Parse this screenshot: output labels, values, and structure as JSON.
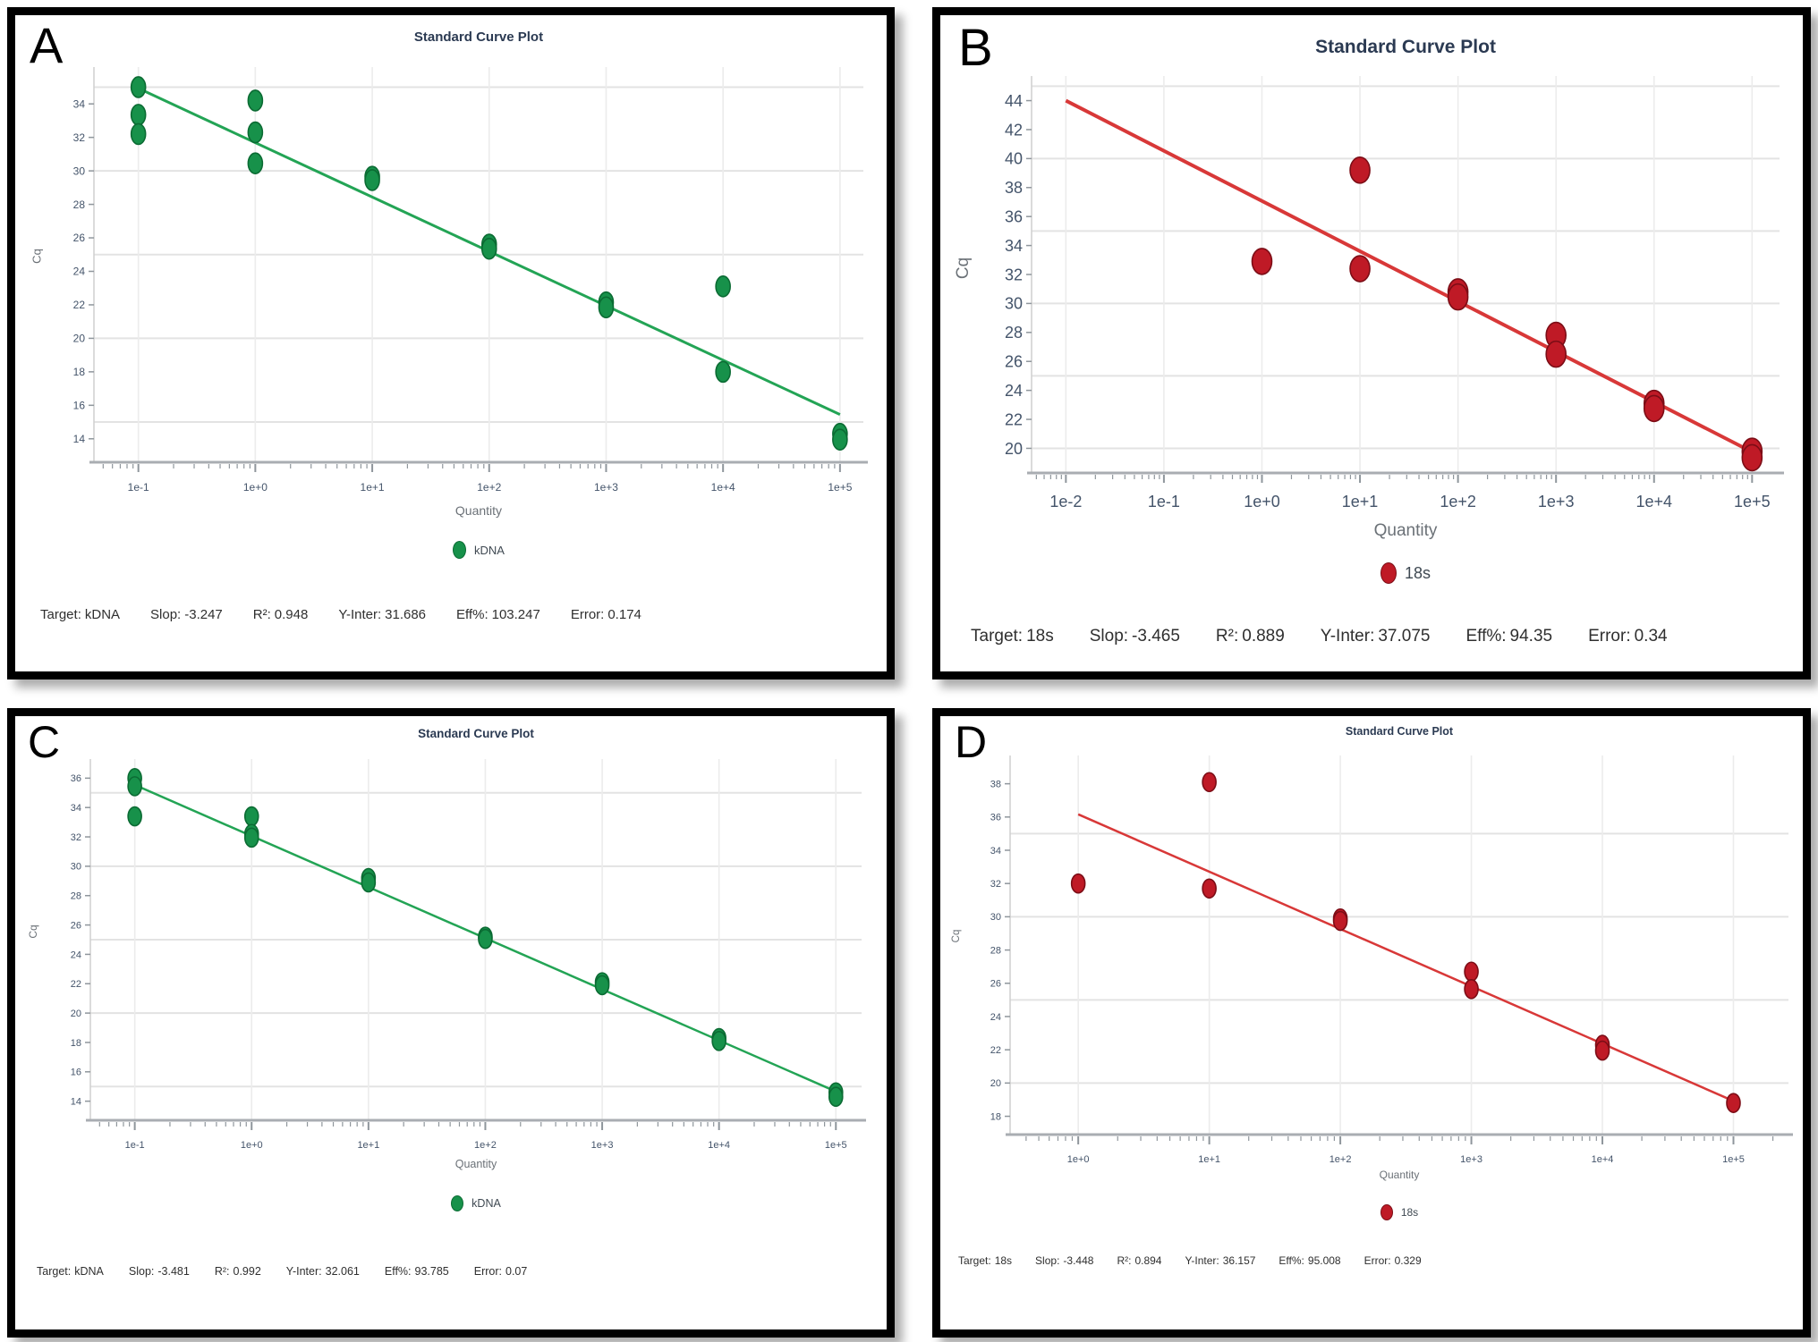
{
  "stats_labels": {
    "target": "Target:",
    "slop": "Slop:",
    "r2": "R²:",
    "y_inter": "Y-Inter:",
    "eff": "Eff%:",
    "error": "Error:"
  },
  "chart_data": [
    {
      "panel": "A",
      "type": "scatter",
      "title": "Standard Curve Plot",
      "xlabel": "Quantity",
      "ylabel": "Cq",
      "x_scale": "log",
      "x_log_range": [
        -1.38,
        5.2
      ],
      "x_tick_decades": [
        -1,
        0,
        1,
        2,
        3,
        4,
        5
      ],
      "x_ticks": [
        "1e-1",
        "1e+0",
        "1e+1",
        "1e+2",
        "1e+3",
        "1e+4",
        "1e+5"
      ],
      "ylim": [
        12.6,
        36.2
      ],
      "y_ticks": [
        14,
        16,
        18,
        20,
        22,
        24,
        26,
        28,
        30,
        32,
        34
      ],
      "y_gridlines": [
        15,
        20,
        25,
        30,
        35
      ],
      "series_color": "#17914a",
      "point_stroke": "#0b6b33",
      "line_color": "#23a455",
      "legend": [
        {
          "name": "kDNA",
          "color": "#17914a"
        }
      ],
      "points": [
        [
          0.1,
          35.0
        ],
        [
          0.1,
          33.35
        ],
        [
          0.1,
          32.2
        ],
        [
          1,
          34.2
        ],
        [
          1,
          32.3
        ],
        [
          1,
          30.45
        ],
        [
          10,
          29.65
        ],
        [
          10,
          29.45
        ],
        [
          100,
          25.6
        ],
        [
          100,
          25.35
        ],
        [
          1000,
          22.15
        ],
        [
          1000,
          21.85
        ],
        [
          10000,
          23.1
        ],
        [
          10000,
          18.0
        ],
        [
          100000,
          14.3
        ],
        [
          100000,
          13.95
        ]
      ],
      "trendline": {
        "from": [
          0.1,
          34.93
        ],
        "to": [
          100000,
          15.45
        ]
      },
      "stats": {
        "target": "kDNA",
        "slop": "-3.247",
        "r2": "0.948",
        "y_inter": "31.686",
        "eff": "103.247",
        "error": "0.174"
      }
    },
    {
      "panel": "B",
      "type": "scatter",
      "title": "Standard Curve Plot",
      "xlabel": "Quantity",
      "ylabel": "Cq",
      "x_scale": "log",
      "x_log_range": [
        -2.35,
        5.28
      ],
      "x_tick_decades": [
        -2,
        -1,
        0,
        1,
        2,
        3,
        4,
        5
      ],
      "x_ticks": [
        "1e-2",
        "1e-1",
        "1e+0",
        "1e+1",
        "1e+2",
        "1e+3",
        "1e+4",
        "1e+5"
      ],
      "ylim": [
        18.3,
        45.7
      ],
      "y_ticks": [
        20,
        22,
        24,
        26,
        28,
        30,
        32,
        34,
        36,
        38,
        40,
        42,
        44
      ],
      "y_gridlines": [
        20,
        25,
        30,
        35,
        40,
        45
      ],
      "series_color": "#bf1a26",
      "point_stroke": "#7c0d16",
      "line_color": "#d83838",
      "legend": [
        {
          "name": "18s",
          "color": "#bf1a26"
        }
      ],
      "points": [
        [
          1,
          32.9
        ],
        [
          10,
          39.2
        ],
        [
          10,
          32.4
        ],
        [
          100,
          30.8
        ],
        [
          100,
          30.45
        ],
        [
          1000,
          27.8
        ],
        [
          1000,
          26.5
        ],
        [
          10000,
          23.1
        ],
        [
          10000,
          22.75
        ],
        [
          100000,
          19.8
        ],
        [
          100000,
          19.35
        ]
      ],
      "trendline": {
        "from": [
          0.01,
          44.0
        ],
        "to": [
          100000,
          19.75
        ]
      },
      "stats": {
        "target": "18s",
        "slop": "-3.465",
        "r2": "0.889",
        "y_inter": "37.075",
        "eff": "94.35",
        "error": "0.34"
      }
    },
    {
      "panel": "C",
      "type": "scatter",
      "title": "Standard Curve Plot",
      "xlabel": "Quantity",
      "ylabel": "Cq",
      "x_scale": "log",
      "x_log_range": [
        -1.38,
        5.22
      ],
      "x_tick_decades": [
        -1,
        0,
        1,
        2,
        3,
        4,
        5
      ],
      "x_ticks": [
        "1e-1",
        "1e+0",
        "1e+1",
        "1e+2",
        "1e+3",
        "1e+4",
        "1e+5"
      ],
      "ylim": [
        12.7,
        37.3
      ],
      "y_ticks": [
        14,
        16,
        18,
        20,
        22,
        24,
        26,
        28,
        30,
        32,
        34,
        36
      ],
      "y_gridlines": [
        15,
        20,
        25,
        30,
        35
      ],
      "series_color": "#17914a",
      "point_stroke": "#0b6b33",
      "line_color": "#23a455",
      "legend": [
        {
          "name": "kDNA",
          "color": "#17914a"
        }
      ],
      "points": [
        [
          0.1,
          36.0
        ],
        [
          0.1,
          35.45
        ],
        [
          0.1,
          33.4
        ],
        [
          1,
          33.4
        ],
        [
          1,
          32.2
        ],
        [
          1,
          31.95
        ],
        [
          10,
          29.2
        ],
        [
          10,
          28.9
        ],
        [
          100,
          25.2
        ],
        [
          100,
          25.05
        ],
        [
          1000,
          22.1
        ],
        [
          1000,
          21.9
        ],
        [
          10000,
          18.3
        ],
        [
          10000,
          18.1
        ],
        [
          100000,
          14.6
        ],
        [
          100000,
          14.3
        ]
      ],
      "trendline": {
        "from": [
          0.1,
          35.54
        ],
        "to": [
          100000,
          14.66
        ]
      },
      "stats": {
        "target": "kDNA",
        "slop": "-3.481",
        "r2": "0.992",
        "y_inter": "32.061",
        "eff": "93.785",
        "error": "0.07"
      }
    },
    {
      "panel": "D",
      "type": "scatter",
      "title": "Standard Curve Plot",
      "xlabel": "Quantity",
      "ylabel": "Cq",
      "x_scale": "log",
      "x_log_range": [
        -0.52,
        5.42
      ],
      "x_tick_decades": [
        0,
        1,
        2,
        3,
        4,
        5
      ],
      "x_ticks": [
        "1e+0",
        "1e+1",
        "1e+2",
        "1e+3",
        "1e+4",
        "1e+5"
      ],
      "ylim": [
        16.9,
        39.7
      ],
      "y_ticks": [
        18,
        20,
        22,
        24,
        26,
        28,
        30,
        32,
        34,
        36,
        38
      ],
      "y_gridlines": [
        20,
        25,
        30,
        35
      ],
      "series_color": "#bf1a26",
      "point_stroke": "#7c0d16",
      "line_color": "#d83838",
      "legend": [
        {
          "name": "18s",
          "color": "#bf1a26"
        }
      ],
      "points": [
        [
          1,
          32.0
        ],
        [
          10,
          38.1
        ],
        [
          10,
          31.7
        ],
        [
          100,
          29.9
        ],
        [
          100,
          29.75
        ],
        [
          1000,
          26.7
        ],
        [
          1000,
          25.65
        ],
        [
          10000,
          22.3
        ],
        [
          10000,
          21.95
        ],
        [
          100000,
          18.8
        ]
      ],
      "trendline": {
        "from": [
          1,
          36.16
        ],
        "to": [
          100000,
          18.92
        ]
      },
      "stats": {
        "target": "18s",
        "slop": "-3.448",
        "r2": "0.894",
        "y_inter": "36.157",
        "eff": "95.008",
        "error": "0.329"
      }
    }
  ]
}
